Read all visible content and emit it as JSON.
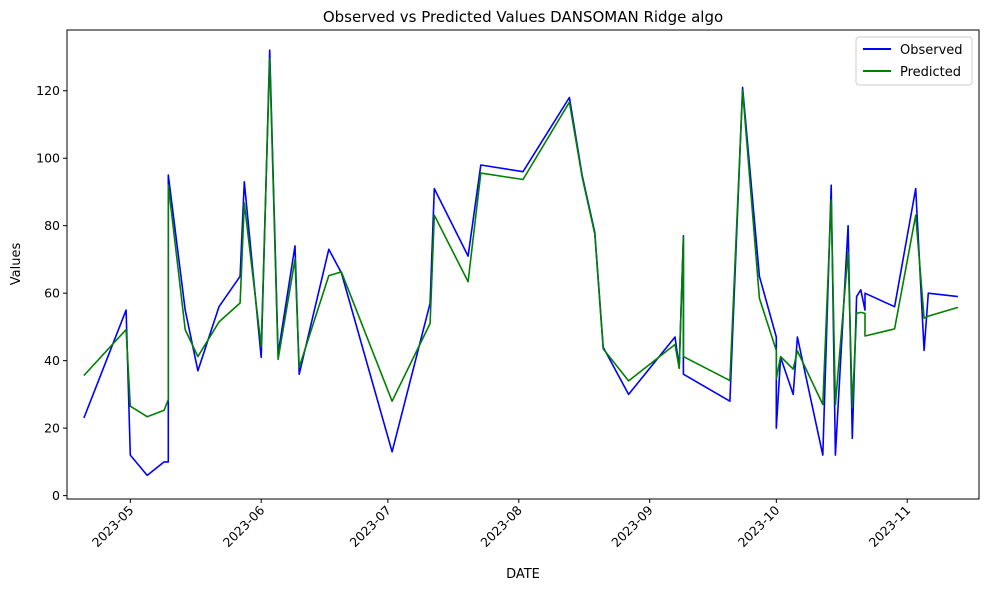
{
  "chart_data": {
    "type": "line",
    "title": "Observed vs Predicted Values DANSOMAN Ridge algo",
    "xlabel": "DATE",
    "ylabel": "Values",
    "x_axis_type": "date",
    "xlim": [
      "2023-04-16",
      "2023-11-18"
    ],
    "ylim": [
      -1,
      138
    ],
    "x_ticks": [
      "2023-05-01",
      "2023-06-01",
      "2023-07-01",
      "2023-08-01",
      "2023-09-01",
      "2023-10-01",
      "2023-11-01"
    ],
    "x_tick_labels": [
      "2023-05",
      "2023-06",
      "2023-07",
      "2023-08",
      "2023-09",
      "2023-10",
      "2023-11"
    ],
    "y_ticks": [
      0,
      20,
      40,
      60,
      80,
      100,
      120
    ],
    "y_tick_labels": [
      "0",
      "20",
      "40",
      "60",
      "80",
      "100",
      "120"
    ],
    "grid": false,
    "legend_position": "top-right",
    "x": [
      "2023-04-20",
      "2023-04-30",
      "2023-05-01",
      "2023-05-05",
      "2023-05-09",
      "2023-05-10",
      "2023-05-10",
      "2023-05-14",
      "2023-05-17",
      "2023-05-22",
      "2023-05-27",
      "2023-05-28",
      "2023-06-01",
      "2023-06-03",
      "2023-06-05",
      "2023-06-09",
      "2023-06-10",
      "2023-06-17",
      "2023-06-20",
      "2023-07-02",
      "2023-07-11",
      "2023-07-12",
      "2023-07-20",
      "2023-07-23",
      "2023-08-02",
      "2023-08-13",
      "2023-08-16",
      "2023-08-19",
      "2023-08-21",
      "2023-08-27",
      "2023-09-07",
      "2023-09-08",
      "2023-09-09",
      "2023-09-09",
      "2023-09-20",
      "2023-09-23",
      "2023-09-27",
      "2023-10-01",
      "2023-10-01",
      "2023-10-02",
      "2023-10-05",
      "2023-10-06",
      "2023-10-12",
      "2023-10-14",
      "2023-10-15",
      "2023-10-18",
      "2023-10-19",
      "2023-10-20",
      "2023-10-21",
      "2023-10-22",
      "2023-10-22",
      "2023-10-29",
      "2023-11-03",
      "2023-11-05",
      "2023-11-06",
      "2023-11-13"
    ],
    "series": [
      {
        "name": "Observed",
        "color": "#0000ff",
        "values": [
          23,
          55,
          12,
          6,
          10,
          10,
          95,
          55,
          37,
          56,
          65,
          93,
          41,
          132,
          42,
          74,
          36,
          73,
          66,
          13,
          57,
          91,
          71,
          98,
          96,
          118,
          95,
          78,
          44,
          30,
          47,
          38,
          77,
          36,
          28,
          121,
          65,
          47,
          20,
          41,
          30,
          47,
          12,
          92,
          12,
          80,
          17,
          59,
          61,
          55,
          60,
          56,
          91,
          43,
          60,
          59
        ]
      },
      {
        "name": "Predicted",
        "color": "#008000",
        "values": [
          35.6,
          49.2,
          26.5,
          23.4,
          25.3,
          28.5,
          92,
          49.2,
          41.2,
          51.5,
          57.1,
          86.7,
          44.2,
          129.5,
          40.4,
          70,
          38,
          65.2,
          66.3,
          28,
          51,
          83.1,
          63.4,
          95.6,
          93.7,
          116.6,
          94.5,
          77.5,
          43.5,
          34,
          44.8,
          37.7,
          76.6,
          41.2,
          34.1,
          120.2,
          58.5,
          43,
          34.6,
          41.2,
          37.5,
          42.9,
          27,
          87.6,
          27,
          72.2,
          26,
          54,
          54.3,
          54,
          47.3,
          49.4,
          83.1,
          52.6,
          53.2,
          55.8
        ]
      }
    ]
  }
}
